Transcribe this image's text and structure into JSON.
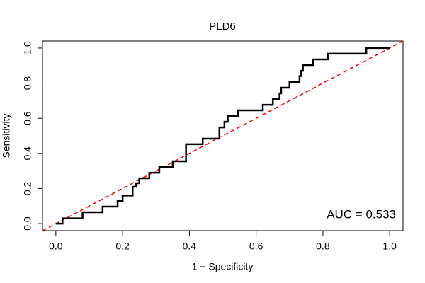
{
  "chart_data": {
    "type": "line",
    "title": "PLD6",
    "xlabel": "1 − Specificity",
    "ylabel": "Sensitivity",
    "annotation": "AUC = 0.533",
    "x": [
      0,
      0.02,
      0.02,
      0.08,
      0.08,
      0.14,
      0.14,
      0.185,
      0.185,
      0.2,
      0.2,
      0.23,
      0.23,
      0.24,
      0.24,
      0.25,
      0.25,
      0.28,
      0.28,
      0.31,
      0.31,
      0.35,
      0.35,
      0.39,
      0.39,
      0.44,
      0.44,
      0.49,
      0.49,
      0.505,
      0.505,
      0.515,
      0.515,
      0.545,
      0.545,
      0.62,
      0.62,
      0.65,
      0.65,
      0.67,
      0.67,
      0.675,
      0.675,
      0.7,
      0.7,
      0.73,
      0.73,
      0.735,
      0.735,
      0.74,
      0.74,
      0.77,
      0.77,
      0.815,
      0.815,
      0.93,
      0.93,
      1.0
    ],
    "series": [
      {
        "color": "#000000",
        "values": [
          0,
          0,
          0.03,
          0.03,
          0.065,
          0.065,
          0.097,
          0.097,
          0.13,
          0.13,
          0.16,
          0.16,
          0.21,
          0.21,
          0.23,
          0.23,
          0.258,
          0.258,
          0.29,
          0.29,
          0.323,
          0.323,
          0.355,
          0.355,
          0.452,
          0.452,
          0.484,
          0.484,
          0.548,
          0.548,
          0.58,
          0.58,
          0.613,
          0.613,
          0.645,
          0.645,
          0.677,
          0.677,
          0.71,
          0.71,
          0.742,
          0.742,
          0.774,
          0.774,
          0.806,
          0.806,
          0.84,
          0.84,
          0.87,
          0.87,
          0.903,
          0.903,
          0.935,
          0.935,
          0.968,
          0.968,
          1.0,
          1.0
        ]
      }
    ],
    "xlim": [
      -0.04,
      1.04
    ],
    "ylim": [
      -0.04,
      1.04
    ],
    "xticks": [
      {
        "value": 0,
        "label": "0.0"
      },
      0.2,
      0.4,
      0.6,
      0.8,
      {
        "value": 1,
        "label": "1.0"
      }
    ],
    "yticks": [
      {
        "value": 0,
        "label": "0.0"
      },
      0.2,
      0.4,
      0.6,
      0.8,
      {
        "value": 1,
        "label": "1.0"
      }
    ]
  }
}
